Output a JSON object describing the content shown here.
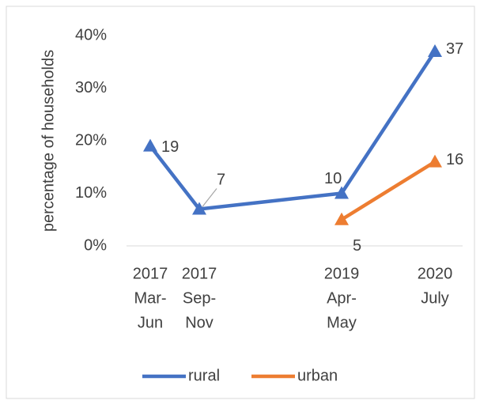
{
  "chart_data": {
    "type": "line",
    "y_label": "percentage of households",
    "categories": [
      [
        "2017",
        "Mar-",
        "Jun"
      ],
      [
        "2017",
        "Sep-",
        "Nov"
      ],
      [
        "2019",
        "Apr-",
        "May"
      ],
      [
        "2020",
        "July"
      ]
    ],
    "series": [
      {
        "name": "rural",
        "color": "#4472c4",
        "values": [
          19,
          7,
          10,
          37
        ]
      },
      {
        "name": "urban",
        "color": "#ed7d31",
        "values": [
          null,
          null,
          5,
          16
        ]
      }
    ],
    "ylim": [
      0,
      40
    ],
    "yticks": [
      {
        "value": 0,
        "label": "0%"
      },
      {
        "value": 10,
        "label": "10%"
      },
      {
        "value": 20,
        "label": "20%"
      },
      {
        "value": 30,
        "label": "30%"
      },
      {
        "value": 40,
        "label": "40%"
      }
    ],
    "legend": "bottom"
  }
}
